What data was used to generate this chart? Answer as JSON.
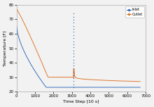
{
  "title": "",
  "xlabel": "Time Step [10 s]",
  "ylabel": "Temperature [F]",
  "xlim": [
    0,
    7000
  ],
  "ylim": [
    20,
    80
  ],
  "yticks": [
    20,
    30,
    40,
    50,
    60,
    70,
    80
  ],
  "xticks": [
    0,
    1000,
    2000,
    3000,
    4000,
    5000,
    6000,
    7000
  ],
  "inlet_color": "#3a6fba",
  "outlet_color": "#e07830",
  "legend_labels": [
    "Inlet",
    "Outlet"
  ],
  "background_color": "#f2f2f2",
  "inlet_start": 65,
  "inlet_flat": 23,
  "outlet_start": 77,
  "outlet_flat": 30,
  "outlet_end": 27,
  "drop_end_t": 1600,
  "outlet_drop_end_t": 1700,
  "spike_t": 3100,
  "spike_top_inlet": 74,
  "spike_top_outlet": 36,
  "end_t": 6700
}
